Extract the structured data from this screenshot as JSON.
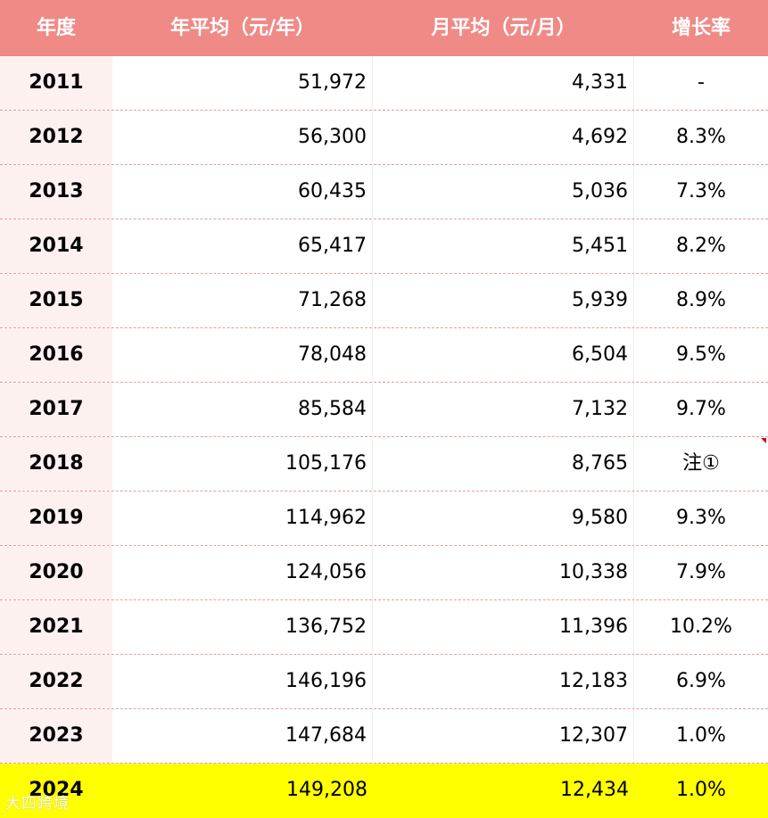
{
  "table": {
    "headers": {
      "year": "年度",
      "annual": "年平均（元/年）",
      "monthly": "月平均（元/月）",
      "growth": "增长率"
    },
    "rows": [
      {
        "year": "2011",
        "annual": "51,972",
        "monthly": "4,331",
        "growth": "-"
      },
      {
        "year": "2012",
        "annual": "56,300",
        "monthly": "4,692",
        "growth": "8.3%"
      },
      {
        "year": "2013",
        "annual": "60,435",
        "monthly": "5,036",
        "growth": "7.3%"
      },
      {
        "year": "2014",
        "annual": "65,417",
        "monthly": "5,451",
        "growth": "8.2%"
      },
      {
        "year": "2015",
        "annual": "71,268",
        "monthly": "5,939",
        "growth": "8.9%"
      },
      {
        "year": "2016",
        "annual": "78,048",
        "monthly": "6,504",
        "growth": "9.5%"
      },
      {
        "year": "2017",
        "annual": "85,584",
        "monthly": "7,132",
        "growth": "9.7%"
      },
      {
        "year": "2018",
        "annual": "105,176",
        "monthly": "8,765",
        "growth": "注①"
      },
      {
        "year": "2019",
        "annual": "114,962",
        "monthly": "9,580",
        "growth": "9.3%"
      },
      {
        "year": "2020",
        "annual": "124,056",
        "monthly": "10,338",
        "growth": "7.9%"
      },
      {
        "year": "2021",
        "annual": "136,752",
        "monthly": "11,396",
        "growth": "10.2%"
      },
      {
        "year": "2022",
        "annual": "146,196",
        "monthly": "12,183",
        "growth": "6.9%"
      },
      {
        "year": "2023",
        "annual": "147,684",
        "monthly": "12,307",
        "growth": "1.0%"
      },
      {
        "year": "2024",
        "annual": "149,208",
        "monthly": "12,434",
        "growth": "1.0%"
      }
    ]
  },
  "watermark": "大四跨境",
  "colors": {
    "header_bg": "#f08a86",
    "year_col_bg": "#fdf1ef",
    "highlight_bg": "#ffff00",
    "comment_marker": "#d0021b"
  }
}
